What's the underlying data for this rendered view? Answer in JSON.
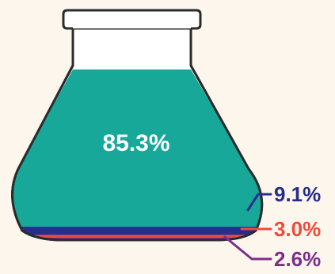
{
  "chart_data": {
    "type": "area",
    "categories": [
      "",
      "",
      "",
      ""
    ],
    "values": [
      85.3,
      9.1,
      3.0,
      2.6
    ],
    "labels": [
      "85.3%",
      "9.1%",
      "3.0%",
      "2.6%"
    ],
    "colors": [
      "#17a89a",
      "#262d8c",
      "#ef4a3a",
      "#7d2e8c"
    ],
    "title": "",
    "xlabel": "",
    "ylabel": ""
  },
  "colors": {
    "background": "#fdf6ec",
    "outline": "#2b2b2b",
    "glass": "#ffffff"
  }
}
